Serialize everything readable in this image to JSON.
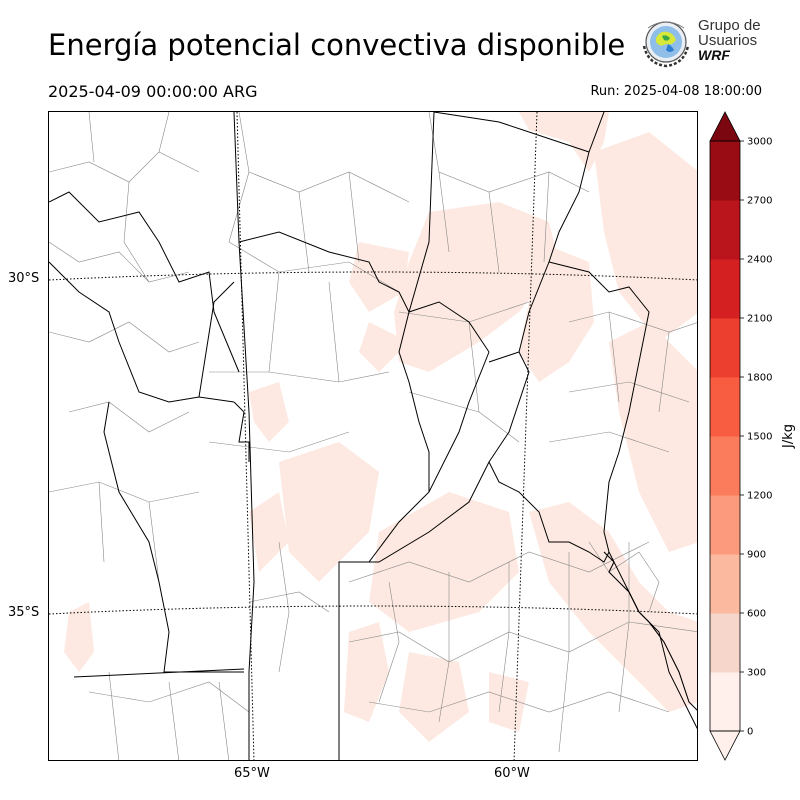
{
  "header": {
    "title": "Energía potencial convectiva disponible",
    "valid_time": "2025-04-09 00:00:00 ARG",
    "run_time": "Run: 2025-04-08 18:00:00"
  },
  "logo": {
    "line1": "Grupo de",
    "line2": "Usuarios",
    "line3": "WRF"
  },
  "map": {
    "lat_labels": [
      "30°S",
      "35°S"
    ],
    "lon_labels": [
      "65°W",
      "60°W"
    ],
    "shading_color": "#fde9e1",
    "border_color": "#000000",
    "department_color": "#888888"
  },
  "colorbar": {
    "label": "J/kg",
    "ticks": [
      "0",
      "300",
      "600",
      "900",
      "1200",
      "1500",
      "1800",
      "2100",
      "2400",
      "2700",
      "3000"
    ],
    "colors": [
      "#fff0eb",
      "#f6d6cb",
      "#fbb99f",
      "#fc9a7d",
      "#fb7c5c",
      "#f85d41",
      "#ec3f2f",
      "#d42020",
      "#ba151c",
      "#9a0c14",
      "#7b0710"
    ],
    "extend": "both"
  }
}
